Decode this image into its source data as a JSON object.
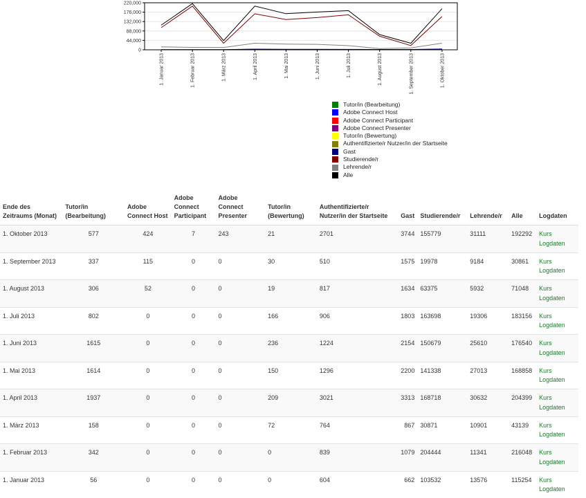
{
  "chart_data": {
    "type": "line",
    "ylim": [
      0,
      220000
    ],
    "y_ticks": [
      "220,000",
      "176,000",
      "132,000",
      "88,000",
      "44,000",
      "0"
    ],
    "x": [
      "1. Januar 2013",
      "1. Februar 2013",
      "1. März 2013",
      "1. April 2013",
      "1. Mai 2013",
      "1. Juni 2013",
      "1. Juli 2013",
      "1. August 2013",
      "1. September 2013",
      "1. Oktober 2013"
    ],
    "series": [
      {
        "name": "Tutor/in (Bearbeitung)",
        "color": "#008000",
        "values": [
          56,
          342,
          158,
          1937,
          1614,
          1615,
          802,
          306,
          337,
          577
        ]
      },
      {
        "name": "Adobe Connect Host",
        "color": "#0000ff",
        "values": [
          0,
          0,
          0,
          0,
          0,
          0,
          0,
          52,
          115,
          424
        ]
      },
      {
        "name": "Adobe Connect Participant",
        "color": "#ff0000",
        "values": [
          0,
          0,
          0,
          0,
          0,
          0,
          0,
          0,
          0,
          7
        ]
      },
      {
        "name": "Adobe Connect Presenter",
        "color": "#800080",
        "values": [
          0,
          0,
          0,
          0,
          0,
          0,
          0,
          0,
          0,
          243
        ]
      },
      {
        "name": "Tutor/in (Bewertung)",
        "color": "#ffff00",
        "values": [
          0,
          0,
          72,
          209,
          150,
          236,
          166,
          19,
          30,
          21
        ]
      },
      {
        "name": "Authentifizierte/r Nutzer/in der Startseite",
        "color": "#808000",
        "values": [
          604,
          839,
          764,
          3021,
          1296,
          1224,
          906,
          817,
          510,
          2701
        ]
      },
      {
        "name": "Gast",
        "color": "#000080",
        "values": [
          662,
          1079,
          867,
          3313,
          2200,
          2154,
          1803,
          1634,
          1575,
          3744
        ]
      },
      {
        "name": "Studierende/r",
        "color": "#800000",
        "values": [
          103532,
          204444,
          30871,
          168718,
          141338,
          150679,
          163698,
          63375,
          19978,
          155779
        ]
      },
      {
        "name": "Lehrende/r",
        "color": "#808080",
        "values": [
          13576,
          11341,
          10901,
          30632,
          27013,
          25610,
          19306,
          5932,
          9184,
          31111
        ]
      },
      {
        "name": "Alle",
        "color": "#000000",
        "values": [
          115254,
          216048,
          43139,
          204399,
          168858,
          176540,
          183156,
          71048,
          30861,
          192292
        ]
      }
    ]
  },
  "table": {
    "headers": {
      "period": "Ende des Zeitraums (Monat)",
      "tutor_edit": "Tutor/in (Bearbeitung)",
      "ac_host": "Adobe Connect Host",
      "ac_participant": "Adobe Connect Participant",
      "ac_presenter": "Adobe Connect Presenter",
      "tutor_grade": "Tutor/in (Bewertung)",
      "auth_user": "Authentifizierte/r Nutzer/in der Startseite",
      "guest": "Gast",
      "student": "Studierende/r",
      "teacher": "Lehrende/r",
      "all": "Alle",
      "logs": "Logdaten"
    },
    "rows": [
      {
        "period": "1. Oktober 2013",
        "tutor_edit": "577",
        "ac_host": "424",
        "ac_participant": "7",
        "ac_presenter": "243",
        "tutor_grade": "21",
        "auth_user": "2701",
        "guest": "3744",
        "student": "155779",
        "teacher": "31111",
        "all": "192292",
        "link_1": "Kurs",
        "link_2": "Logdaten"
      },
      {
        "period": "1. September 2013",
        "tutor_edit": "337",
        "ac_host": "115",
        "ac_participant": "0",
        "ac_presenter": "0",
        "tutor_grade": "30",
        "auth_user": "510",
        "guest": "1575",
        "student": "19978",
        "teacher": "9184",
        "all": "30861",
        "link_1": "Kurs",
        "link_2": "Logdaten"
      },
      {
        "period": "1. August 2013",
        "tutor_edit": "306",
        "ac_host": "52",
        "ac_participant": "0",
        "ac_presenter": "0",
        "tutor_grade": "19",
        "auth_user": "817",
        "guest": "1634",
        "student": "63375",
        "teacher": "5932",
        "all": "71048",
        "link_1": "Kurs",
        "link_2": "Logdaten"
      },
      {
        "period": "1. Juli 2013",
        "tutor_edit": "802",
        "ac_host": "0",
        "ac_participant": "0",
        "ac_presenter": "0",
        "tutor_grade": "166",
        "auth_user": "906",
        "guest": "1803",
        "student": "163698",
        "teacher": "19306",
        "all": "183156",
        "link_1": "Kurs",
        "link_2": "Logdaten"
      },
      {
        "period": "1. Juni 2013",
        "tutor_edit": "1615",
        "ac_host": "0",
        "ac_participant": "0",
        "ac_presenter": "0",
        "tutor_grade": "236",
        "auth_user": "1224",
        "guest": "2154",
        "student": "150679",
        "teacher": "25610",
        "all": "176540",
        "link_1": "Kurs",
        "link_2": "Logdaten"
      },
      {
        "period": "1. Mai 2013",
        "tutor_edit": "1614",
        "ac_host": "0",
        "ac_participant": "0",
        "ac_presenter": "0",
        "tutor_grade": "150",
        "auth_user": "1296",
        "guest": "2200",
        "student": "141338",
        "teacher": "27013",
        "all": "168858",
        "link_1": "Kurs",
        "link_2": "Logdaten"
      },
      {
        "period": "1. April 2013",
        "tutor_edit": "1937",
        "ac_host": "0",
        "ac_participant": "0",
        "ac_presenter": "0",
        "tutor_grade": "209",
        "auth_user": "3021",
        "guest": "3313",
        "student": "168718",
        "teacher": "30632",
        "all": "204399",
        "link_1": "Kurs",
        "link_2": "Logdaten"
      },
      {
        "period": "1. März 2013",
        "tutor_edit": "158",
        "ac_host": "0",
        "ac_participant": "0",
        "ac_presenter": "0",
        "tutor_grade": "72",
        "auth_user": "764",
        "guest": "867",
        "student": "30871",
        "teacher": "10901",
        "all": "43139",
        "link_1": "Kurs",
        "link_2": "Logdaten"
      },
      {
        "period": "1. Februar 2013",
        "tutor_edit": "342",
        "ac_host": "0",
        "ac_participant": "0",
        "ac_presenter": "0",
        "tutor_grade": "0",
        "auth_user": "839",
        "guest": "1079",
        "student": "204444",
        "teacher": "11341",
        "all": "216048",
        "link_1": "Kurs",
        "link_2": "Logdaten"
      },
      {
        "period": "1. Januar 2013",
        "tutor_edit": "56",
        "ac_host": "0",
        "ac_participant": "0",
        "ac_presenter": "0",
        "tutor_grade": "0",
        "auth_user": "604",
        "guest": "662",
        "student": "103532",
        "teacher": "13576",
        "all": "115254",
        "link_1": "Kurs",
        "link_2": "Logdaten"
      }
    ]
  }
}
